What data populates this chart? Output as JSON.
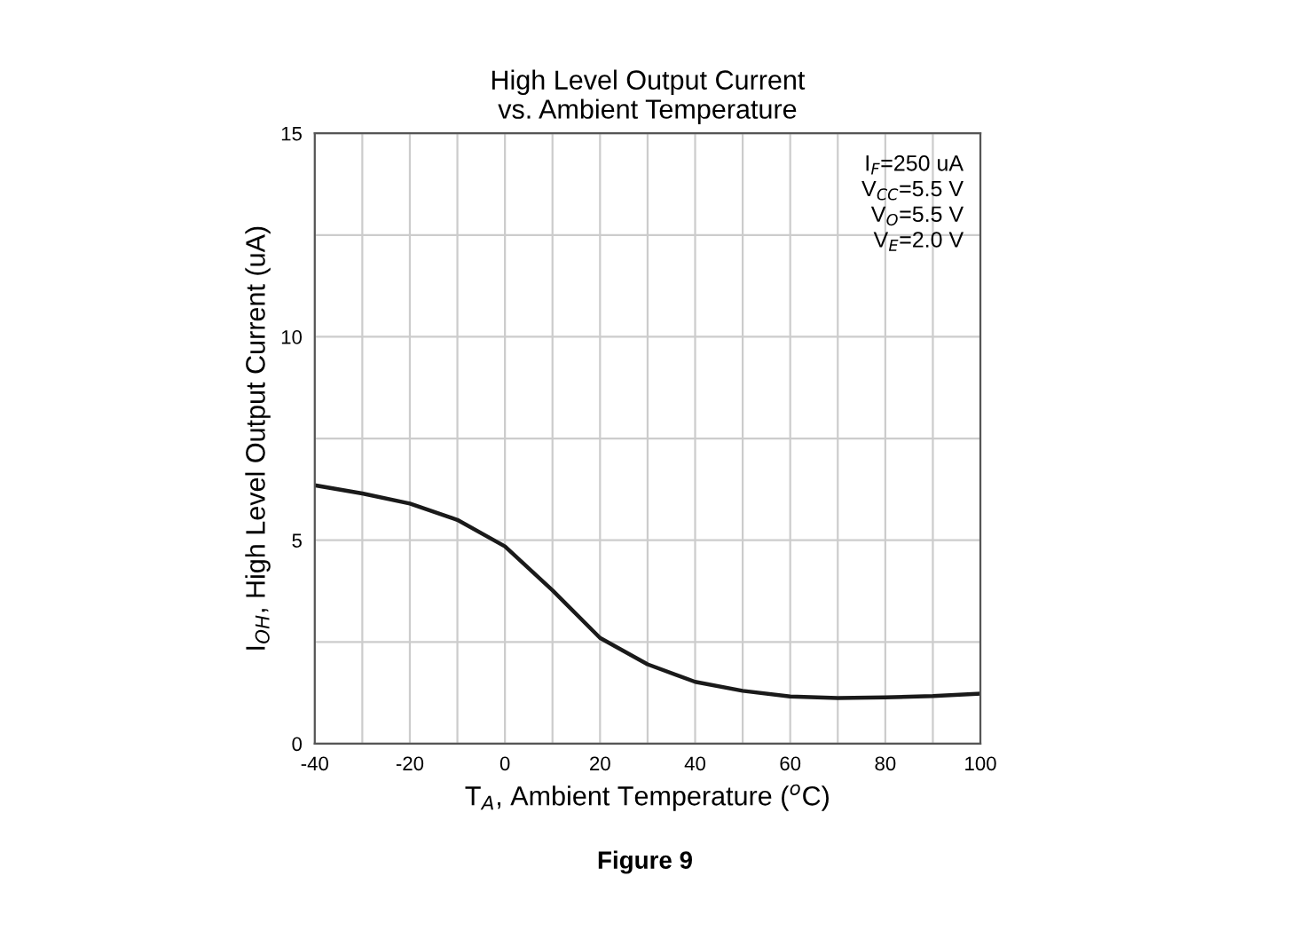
{
  "chart_data": {
    "type": "line",
    "title": "High Level Output Current\nvs. Ambient Temperature",
    "xlabel": "T$_{A}$, Ambient Temperature ($^{o}$C)",
    "ylabel": "I$_{OH}$, High Level Output Current (uA)",
    "x": [
      -40,
      -30,
      -20,
      -10,
      0,
      10,
      20,
      30,
      40,
      50,
      60,
      70,
      80,
      90,
      100
    ],
    "series": [
      {
        "color": "#1a1a1a",
        "values": [
          6.35,
          6.15,
          5.9,
          5.5,
          4.85,
          3.77,
          2.6,
          1.95,
          1.52,
          1.3,
          1.16,
          1.12,
          1.14,
          1.17,
          1.23
        ]
      }
    ],
    "xlim": [
      -40,
      100
    ],
    "ylim": [
      0,
      15
    ],
    "xticks": [
      -40,
      {
        "value": -30,
        "label": null
      },
      -20,
      {
        "value": -10,
        "label": null
      },
      0,
      {
        "value": 10,
        "label": null
      },
      20,
      {
        "value": 30,
        "label": null
      },
      40,
      {
        "value": 50,
        "label": null
      },
      60,
      {
        "value": 70,
        "label": null
      },
      80,
      {
        "value": 90,
        "label": null
      },
      100
    ],
    "yticks": [
      0,
      {
        "value": 2.5,
        "label": null
      },
      5,
      {
        "value": 7.5,
        "label": null
      },
      10,
      {
        "value": 12.5,
        "label": null
      },
      15
    ],
    "grid": true,
    "marker": "none",
    "line_style": "solid",
    "annotations": [
      "I$_{F}$=250 uA\nV$_{CC}$=5.5 V\nV$_{O}$=5.5 V\nV$_{E}$=2.0 V",
      "Figure 9"
    ]
  }
}
